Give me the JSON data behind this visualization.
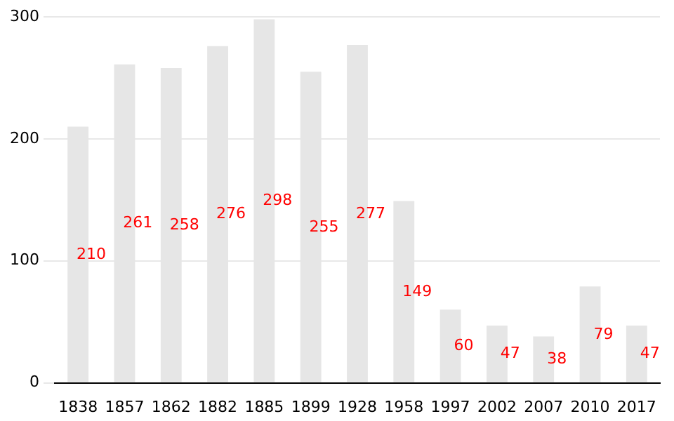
{
  "chart_data": {
    "type": "bar",
    "categories": [
      "1838",
      "1857",
      "1862",
      "1882",
      "1885",
      "1899",
      "1928",
      "1958",
      "1997",
      "2002",
      "2007",
      "2010",
      "2017"
    ],
    "values": [
      210,
      261,
      258,
      276,
      298,
      255,
      277,
      149,
      60,
      47,
      38,
      79,
      47
    ],
    "color": "#e6e6e6",
    "ylim": [
      0,
      300
    ],
    "yticks": [
      0,
      100,
      200,
      300
    ],
    "grid": "y",
    "data_labels": true
  }
}
